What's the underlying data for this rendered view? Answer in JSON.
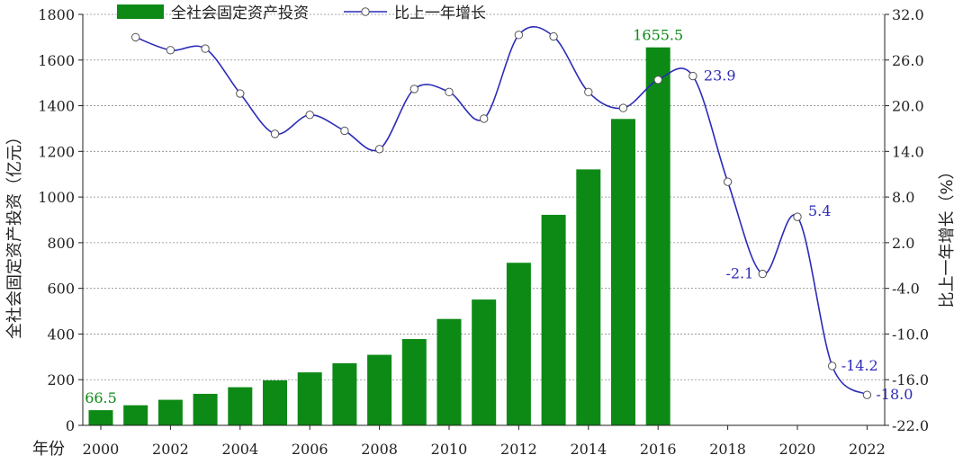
{
  "chart_data": {
    "type": "bar",
    "legend": {
      "bar_series": "全社会固定资产投资",
      "line_series": "比上一年增长",
      "placement": "top"
    },
    "ylabel_left": "全社会固定资产投资（亿元）",
    "ylabel_right": "比上一年增长（%）",
    "x_axis_title": "年份",
    "x_tick_labels": [
      "2000",
      "2002",
      "2004",
      "2006",
      "2008",
      "2010",
      "2012",
      "2014",
      "2016",
      "2018",
      "2020",
      "2022"
    ],
    "left_axis": {
      "min": 0,
      "max": 1800,
      "ticks": [
        "0",
        "200",
        "400",
        "600",
        "800",
        "1000",
        "1200",
        "1400",
        "1600",
        "1800"
      ]
    },
    "right_axis": {
      "min": -22,
      "max": 32,
      "ticks": [
        "-22.0",
        "-16.0",
        "-10.0",
        "-4.0",
        "2.0",
        "8.0",
        "14.0",
        "20.0",
        "26.0",
        "32.0"
      ]
    },
    "grid": "horizontal dotted",
    "years": [
      2000,
      2001,
      2002,
      2003,
      2004,
      2005,
      2006,
      2007,
      2008,
      2009,
      2010,
      2011,
      2012,
      2013,
      2014,
      2015,
      2016,
      2017,
      2018,
      2019,
      2020,
      2021,
      2022
    ],
    "bar_values": [
      66.5,
      88,
      112,
      138,
      167,
      197,
      232,
      272,
      309,
      378,
      466,
      551,
      712,
      922,
      1121,
      1342,
      1655.5
    ],
    "line_values": [
      null,
      29.0,
      27.3,
      27.5,
      21.6,
      16.3,
      18.8,
      16.7,
      14.3,
      22.2,
      21.8,
      18.3,
      29.3,
      29.1,
      21.8,
      19.7,
      23.4,
      23.9,
      10.0,
      -2.1,
      5.4,
      -14.2,
      -18.0
    ],
    "bar_annotations": [
      {
        "index": 0,
        "text": "66.5"
      },
      {
        "index": 16,
        "text": "1655.5"
      }
    ],
    "line_annotations": [
      {
        "index": 17,
        "text": "23.9"
      },
      {
        "index": 19,
        "text": "-2.1"
      },
      {
        "index": 20,
        "text": "5.4"
      },
      {
        "index": 21,
        "text": "-14.2"
      },
      {
        "index": 22,
        "text": "-18.0"
      }
    ],
    "colors": {
      "bar": "#0d8a16",
      "line": "#2b2bb8",
      "marker_fill": "#ffffff",
      "marker_stroke": "#555555",
      "bar_label": "#0d8a16",
      "line_label": "#2b2bb8"
    }
  }
}
